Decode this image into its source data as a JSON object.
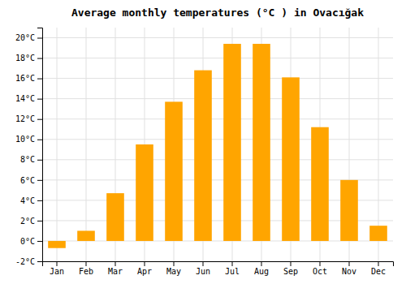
{
  "chart_data": {
    "type": "bar",
    "title": "Average monthly temperatures (°C ) in Ovacığak",
    "categories": [
      "Jan",
      "Feb",
      "Mar",
      "Apr",
      "May",
      "Jun",
      "Jul",
      "Aug",
      "Sep",
      "Oct",
      "Nov",
      "Dec"
    ],
    "values": [
      -0.7,
      1.0,
      4.7,
      9.5,
      13.7,
      16.8,
      19.4,
      19.4,
      16.1,
      11.2,
      6.0,
      1.5
    ],
    "color": "#FFA500",
    "ylim": [
      -2,
      21
    ],
    "yticks": [
      {
        "value": -2,
        "label": "-2°C"
      },
      {
        "value": 0,
        "label": "0°C"
      },
      {
        "value": 2,
        "label": "2°C"
      },
      {
        "value": 4,
        "label": "4°C"
      },
      {
        "value": 6,
        "label": "6°C"
      },
      {
        "value": 8,
        "label": "8°C"
      },
      {
        "value": 10,
        "label": "10°C"
      },
      {
        "value": 12,
        "label": "12°C"
      },
      {
        "value": 14,
        "label": "14°C"
      },
      {
        "value": 16,
        "label": "16°C"
      },
      {
        "value": 18,
        "label": "18°C"
      },
      {
        "value": 20,
        "label": "20°C"
      }
    ],
    "grid": true
  }
}
